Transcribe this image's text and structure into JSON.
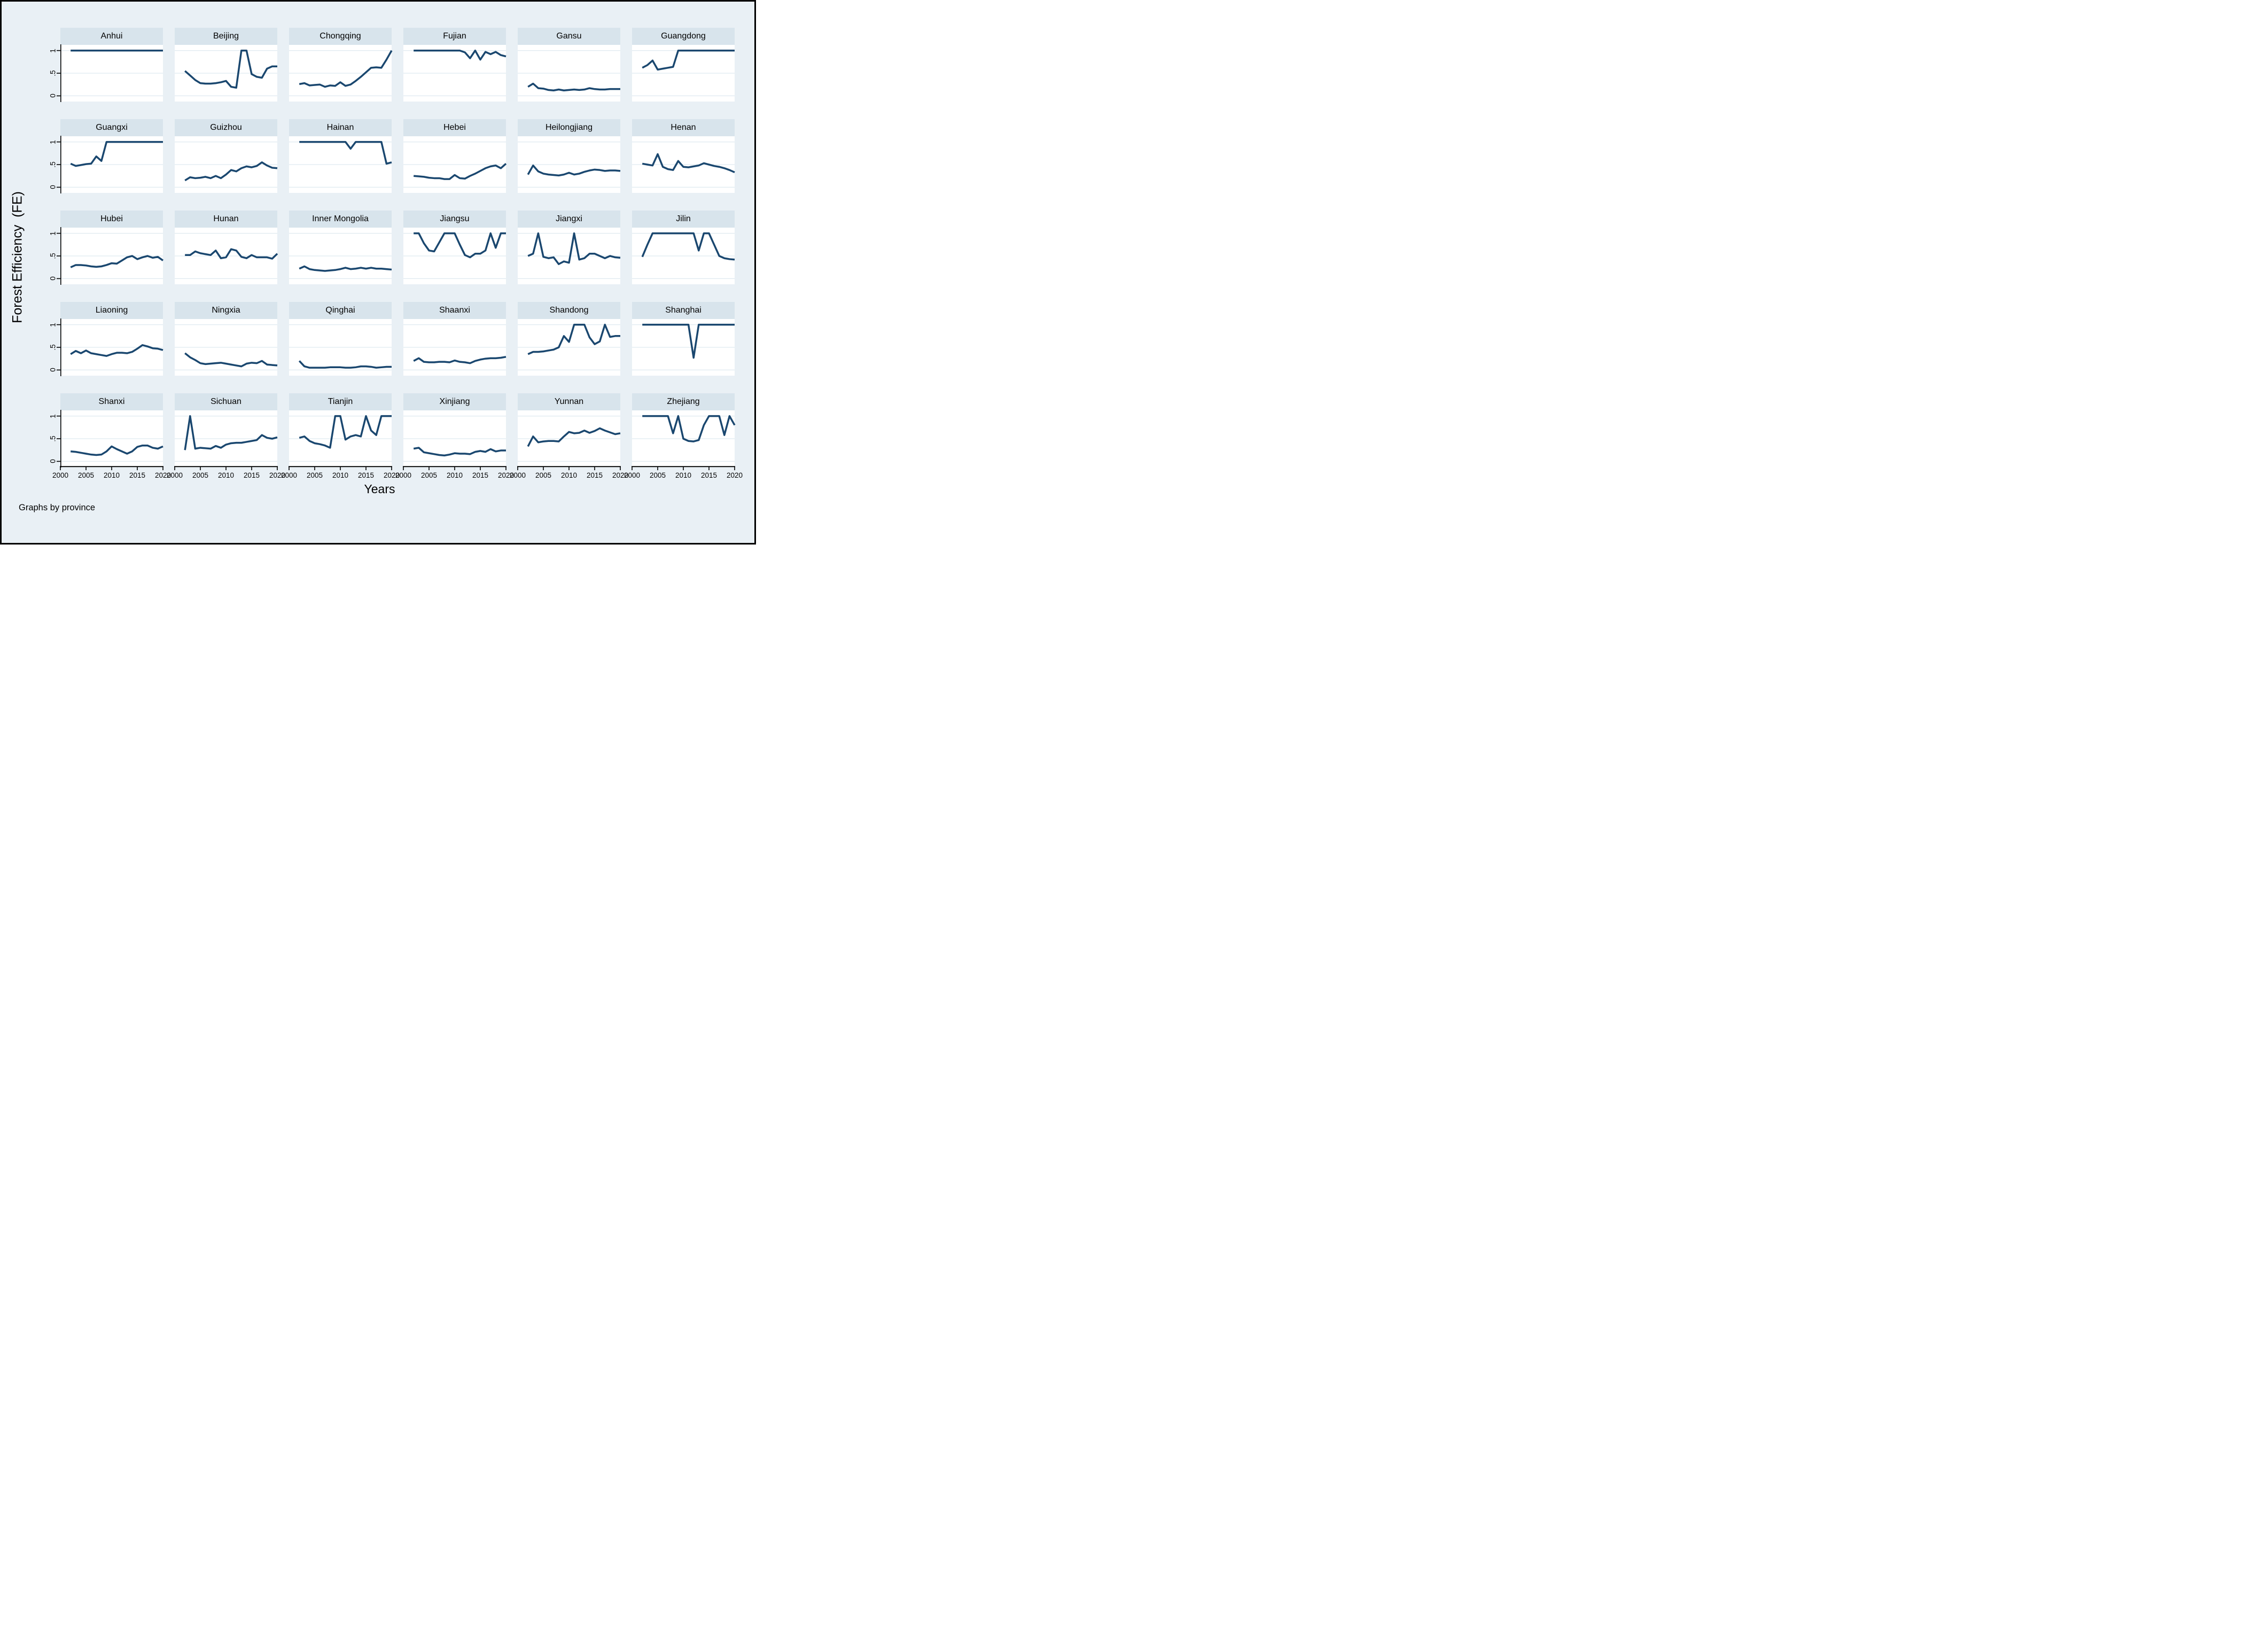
{
  "figure": {
    "ylabel": "Forest Efficiency  (FE)",
    "xlabel": "Years",
    "note": "Graphs by province"
  },
  "colors": {
    "line": "#1a476f",
    "title_band_bg": "#d8e4ec",
    "page_bg": "#e9f0f5",
    "plot_bg": "#ffffff",
    "gridline": "#dfe9f0",
    "axis": "#000000"
  },
  "chart_data": {
    "type": "line",
    "title": "",
    "xlabel": "Years",
    "ylabel": "Forest Efficiency  (FE)",
    "note": "Graphs by province",
    "x_range": [
      2000,
      2020
    ],
    "y_range": [
      0,
      1
    ],
    "x_tick_values": [
      2000,
      2005,
      2010,
      2015,
      2020
    ],
    "x_tick_labels": [
      "2000",
      "2005",
      "2010",
      "2015",
      "2020"
    ],
    "y_tick_values": [
      1,
      0.5,
      0
    ],
    "y_tick_labels": [
      "1",
      ".5",
      "0"
    ],
    "grid": true,
    "legend_position": "none",
    "layout": {
      "rows": 5,
      "cols": 6
    },
    "x": [
      2002,
      2003,
      2004,
      2005,
      2006,
      2007,
      2008,
      2009,
      2010,
      2011,
      2012,
      2013,
      2014,
      2015,
      2016,
      2017,
      2018,
      2019,
      2020
    ],
    "series": [
      {
        "name": "Anhui",
        "values": [
          1,
          1,
          1,
          1,
          1,
          1,
          1,
          1,
          1,
          1,
          1,
          1,
          1,
          1,
          1,
          1,
          1,
          1,
          1
        ]
      },
      {
        "name": "Beijing",
        "values": [
          0.55,
          0.45,
          0.35,
          0.28,
          0.27,
          0.27,
          0.28,
          0.3,
          0.33,
          0.2,
          0.18,
          1.0,
          1.0,
          0.48,
          0.42,
          0.4,
          0.6,
          0.65,
          0.65
        ]
      },
      {
        "name": "Chongqing",
        "values": [
          0.26,
          0.28,
          0.23,
          0.24,
          0.25,
          0.2,
          0.23,
          0.22,
          0.3,
          0.22,
          0.25,
          0.33,
          0.42,
          0.52,
          0.62,
          0.63,
          0.62,
          0.8,
          1.0
        ]
      },
      {
        "name": "Fujian",
        "values": [
          1,
          1,
          1,
          1,
          1,
          1,
          1,
          1,
          1,
          1,
          0.96,
          0.83,
          1.0,
          0.8,
          0.97,
          0.92,
          0.97,
          0.9,
          0.87
        ]
      },
      {
        "name": "Gansu",
        "values": [
          0.2,
          0.27,
          0.17,
          0.16,
          0.13,
          0.12,
          0.14,
          0.12,
          0.13,
          0.14,
          0.13,
          0.14,
          0.17,
          0.15,
          0.14,
          0.14,
          0.15,
          0.15,
          0.15
        ]
      },
      {
        "name": "Guangdong",
        "values": [
          0.62,
          0.68,
          0.78,
          0.58,
          0.6,
          0.62,
          0.64,
          1,
          1,
          1,
          1,
          1,
          1,
          1,
          1,
          1,
          1,
          1,
          1
        ]
      },
      {
        "name": "Guangxi",
        "values": [
          0.52,
          0.47,
          0.49,
          0.51,
          0.52,
          0.68,
          0.58,
          1,
          1,
          1,
          1,
          1,
          1,
          1,
          1,
          1,
          1,
          1,
          1
        ]
      },
      {
        "name": "Guizhou",
        "values": [
          0.15,
          0.22,
          0.2,
          0.21,
          0.23,
          0.2,
          0.25,
          0.2,
          0.28,
          0.38,
          0.35,
          0.42,
          0.46,
          0.44,
          0.47,
          0.55,
          0.48,
          0.43,
          0.42
        ]
      },
      {
        "name": "Hainan",
        "values": [
          1,
          1,
          1,
          1,
          1,
          1,
          1,
          1,
          1,
          1,
          0.85,
          1,
          1,
          1,
          1,
          1,
          1,
          0.52,
          0.55
        ]
      },
      {
        "name": "Hebei",
        "values": [
          0.25,
          0.24,
          0.23,
          0.21,
          0.2,
          0.2,
          0.18,
          0.18,
          0.27,
          0.2,
          0.19,
          0.25,
          0.3,
          0.36,
          0.42,
          0.46,
          0.48,
          0.42,
          0.52
        ]
      },
      {
        "name": "Heilongjiang",
        "values": [
          0.28,
          0.48,
          0.35,
          0.3,
          0.28,
          0.27,
          0.26,
          0.28,
          0.32,
          0.28,
          0.3,
          0.34,
          0.37,
          0.39,
          0.38,
          0.36,
          0.37,
          0.37,
          0.36
        ]
      },
      {
        "name": "Henan",
        "values": [
          0.52,
          0.5,
          0.48,
          0.73,
          0.45,
          0.4,
          0.38,
          0.58,
          0.45,
          0.44,
          0.46,
          0.48,
          0.53,
          0.5,
          0.47,
          0.45,
          0.42,
          0.38,
          0.33
        ]
      },
      {
        "name": "Hubei",
        "values": [
          0.25,
          0.3,
          0.3,
          0.29,
          0.27,
          0.26,
          0.27,
          0.3,
          0.34,
          0.33,
          0.4,
          0.47,
          0.5,
          0.43,
          0.47,
          0.5,
          0.46,
          0.48,
          0.4
        ]
      },
      {
        "name": "Hunan",
        "values": [
          0.52,
          0.52,
          0.6,
          0.56,
          0.54,
          0.52,
          0.62,
          0.45,
          0.47,
          0.65,
          0.62,
          0.48,
          0.45,
          0.52,
          0.47,
          0.47,
          0.47,
          0.44,
          0.55
        ]
      },
      {
        "name": "Inner Mongolia",
        "values": [
          0.22,
          0.27,
          0.21,
          0.19,
          0.18,
          0.17,
          0.18,
          0.19,
          0.21,
          0.24,
          0.21,
          0.22,
          0.24,
          0.22,
          0.24,
          0.22,
          0.22,
          0.21,
          0.2
        ]
      },
      {
        "name": "Jiangsu",
        "values": [
          1,
          1,
          0.78,
          0.62,
          0.6,
          0.8,
          1,
          1,
          1,
          0.75,
          0.52,
          0.47,
          0.55,
          0.55,
          0.62,
          1.0,
          0.68,
          1.0,
          1.0
        ]
      },
      {
        "name": "Jiangxi",
        "values": [
          0.5,
          0.55,
          1.0,
          0.48,
          0.45,
          0.47,
          0.32,
          0.38,
          0.35,
          1.0,
          0.42,
          0.45,
          0.55,
          0.55,
          0.5,
          0.45,
          0.5,
          0.47,
          0.46
        ]
      },
      {
        "name": "Jilin",
        "values": [
          0.48,
          0.75,
          1,
          1,
          1,
          1,
          1,
          1,
          1,
          1,
          1,
          0.62,
          1,
          1,
          0.75,
          0.5,
          0.45,
          0.43,
          0.42
        ]
      },
      {
        "name": "Liaoning",
        "values": [
          0.35,
          0.42,
          0.37,
          0.43,
          0.37,
          0.35,
          0.33,
          0.31,
          0.35,
          0.38,
          0.38,
          0.37,
          0.4,
          0.47,
          0.55,
          0.52,
          0.48,
          0.47,
          0.44
        ]
      },
      {
        "name": "Ningxia",
        "values": [
          0.37,
          0.28,
          0.22,
          0.15,
          0.13,
          0.14,
          0.15,
          0.16,
          0.14,
          0.12,
          0.1,
          0.08,
          0.14,
          0.16,
          0.15,
          0.2,
          0.12,
          0.11,
          0.1
        ]
      },
      {
        "name": "Qinghai",
        "values": [
          0.2,
          0.08,
          0.05,
          0.05,
          0.05,
          0.05,
          0.06,
          0.06,
          0.06,
          0.05,
          0.05,
          0.06,
          0.08,
          0.08,
          0.07,
          0.05,
          0.06,
          0.07,
          0.07
        ]
      },
      {
        "name": "Shaanxi",
        "values": [
          0.2,
          0.26,
          0.18,
          0.17,
          0.17,
          0.18,
          0.18,
          0.17,
          0.21,
          0.18,
          0.17,
          0.15,
          0.2,
          0.23,
          0.25,
          0.26,
          0.26,
          0.27,
          0.29
        ]
      },
      {
        "name": "Shandong",
        "values": [
          0.35,
          0.4,
          0.4,
          0.41,
          0.43,
          0.45,
          0.5,
          0.75,
          0.62,
          1,
          1,
          1,
          0.72,
          0.57,
          0.63,
          1.0,
          0.73,
          0.75,
          0.75
        ]
      },
      {
        "name": "Shanghai",
        "values": [
          1,
          1,
          1,
          1,
          1,
          1,
          1,
          1,
          1,
          1,
          0.27,
          1,
          1,
          1,
          1,
          1,
          1,
          1,
          1
        ]
      },
      {
        "name": "Shanxi",
        "values": [
          0.22,
          0.21,
          0.19,
          0.17,
          0.15,
          0.14,
          0.15,
          0.22,
          0.33,
          0.27,
          0.22,
          0.17,
          0.22,
          0.32,
          0.35,
          0.35,
          0.3,
          0.28,
          0.33
        ]
      },
      {
        "name": "Sichuan",
        "values": [
          0.25,
          1.0,
          0.28,
          0.3,
          0.29,
          0.28,
          0.34,
          0.3,
          0.37,
          0.4,
          0.41,
          0.41,
          0.43,
          0.45,
          0.47,
          0.58,
          0.52,
          0.5,
          0.53
        ]
      },
      {
        "name": "Tianjin",
        "values": [
          0.52,
          0.55,
          0.45,
          0.4,
          0.38,
          0.35,
          0.3,
          1.0,
          1.0,
          0.48,
          0.55,
          0.58,
          0.55,
          1.0,
          0.68,
          0.58,
          1.0,
          1.0,
          1.0
        ]
      },
      {
        "name": "Xinjiang",
        "values": [
          0.28,
          0.3,
          0.2,
          0.18,
          0.16,
          0.14,
          0.13,
          0.15,
          0.18,
          0.17,
          0.17,
          0.16,
          0.21,
          0.23,
          0.21,
          0.27,
          0.22,
          0.24,
          0.24
        ]
      },
      {
        "name": "Yunnan",
        "values": [
          0.33,
          0.55,
          0.42,
          0.44,
          0.45,
          0.45,
          0.44,
          0.55,
          0.65,
          0.62,
          0.63,
          0.68,
          0.63,
          0.67,
          0.73,
          0.68,
          0.64,
          0.6,
          0.62
        ]
      },
      {
        "name": "Zhejiang",
        "values": [
          1,
          1,
          1,
          1,
          1,
          1,
          0.62,
          1.0,
          0.5,
          0.45,
          0.44,
          0.47,
          0.8,
          1,
          1,
          1,
          0.58,
          1.0,
          0.8
        ]
      }
    ]
  }
}
